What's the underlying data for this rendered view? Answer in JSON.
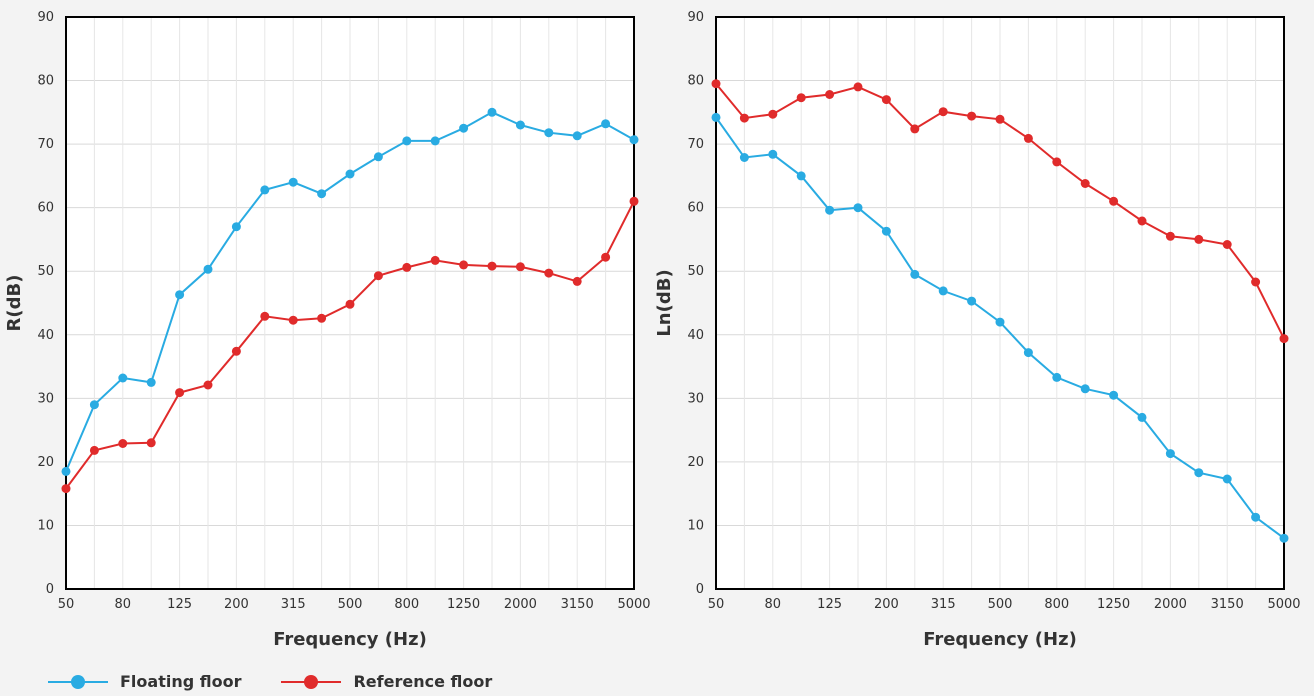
{
  "chart_data": [
    {
      "type": "line",
      "xlabel": "Frequency (Hz)",
      "ylabel": "R(dB)",
      "ylim": [
        0,
        90
      ],
      "yticks": [
        0,
        10,
        20,
        30,
        40,
        50,
        60,
        70,
        80,
        90
      ],
      "x": [
        "50",
        "63",
        "80",
        "100",
        "125",
        "160",
        "200",
        "250",
        "315",
        "400",
        "500",
        "630",
        "800",
        "1000",
        "1250",
        "1600",
        "2000",
        "2500",
        "3150",
        "4000",
        "5000"
      ],
      "tick_labels": [
        "50",
        "80",
        "125",
        "200",
        "315",
        "500",
        "800",
        "1250",
        "2000",
        "3150",
        "5000"
      ],
      "grid": true,
      "series": [
        {
          "name": "Floating floor",
          "color": "#29abe2",
          "values": [
            18.5,
            29,
            33.2,
            32.5,
            46.3,
            50.3,
            57,
            62.8,
            64,
            62.2,
            65.3,
            68,
            70.5,
            70.5,
            72.5,
            75,
            73,
            71.8,
            71.3,
            73.2,
            70.7
          ]
        },
        {
          "name": "Reference floor",
          "color": "#e02b2b",
          "values": [
            15.8,
            21.8,
            22.9,
            23,
            30.9,
            32.1,
            37.4,
            42.9,
            42.3,
            42.6,
            44.8,
            49.3,
            50.6,
            51.7,
            51,
            50.8,
            50.7,
            49.7,
            48.4,
            52.2,
            61
          ]
        }
      ]
    },
    {
      "type": "line",
      "xlabel": "Frequency (Hz)",
      "ylabel": "Ln(dB)",
      "ylim": [
        0,
        90
      ],
      "yticks": [
        0,
        10,
        20,
        30,
        40,
        50,
        60,
        70,
        80,
        90
      ],
      "x": [
        "50",
        "63",
        "80",
        "100",
        "125",
        "160",
        "200",
        "250",
        "315",
        "400",
        "500",
        "630",
        "800",
        "1000",
        "1250",
        "1600",
        "2000",
        "2500",
        "3150",
        "4000",
        "5000"
      ],
      "tick_labels": [
        "50",
        "80",
        "125",
        "200",
        "315",
        "500",
        "800",
        "1250",
        "2000",
        "3150",
        "5000"
      ],
      "grid": true,
      "series": [
        {
          "name": "Floating floor",
          "color": "#29abe2",
          "values": [
            74.2,
            67.9,
            68.4,
            65,
            59.6,
            60,
            56.3,
            49.5,
            46.9,
            45.3,
            42,
            37.2,
            33.3,
            31.5,
            30.5,
            27,
            21.3,
            18.3,
            17.3,
            11.3,
            8
          ]
        },
        {
          "name": "Reference floor",
          "color": "#e02b2b",
          "values": [
            79.5,
            74.1,
            74.7,
            77.3,
            77.8,
            79,
            77,
            72.4,
            75.1,
            74.4,
            73.9,
            70.9,
            67.2,
            63.8,
            61,
            57.9,
            55.5,
            55,
            54.2,
            48.3,
            39.4
          ]
        }
      ]
    }
  ],
  "legend": {
    "items": [
      {
        "label": "Floating floor",
        "color": "#29abe2"
      },
      {
        "label": "Reference floor",
        "color": "#e02b2b"
      }
    ]
  }
}
